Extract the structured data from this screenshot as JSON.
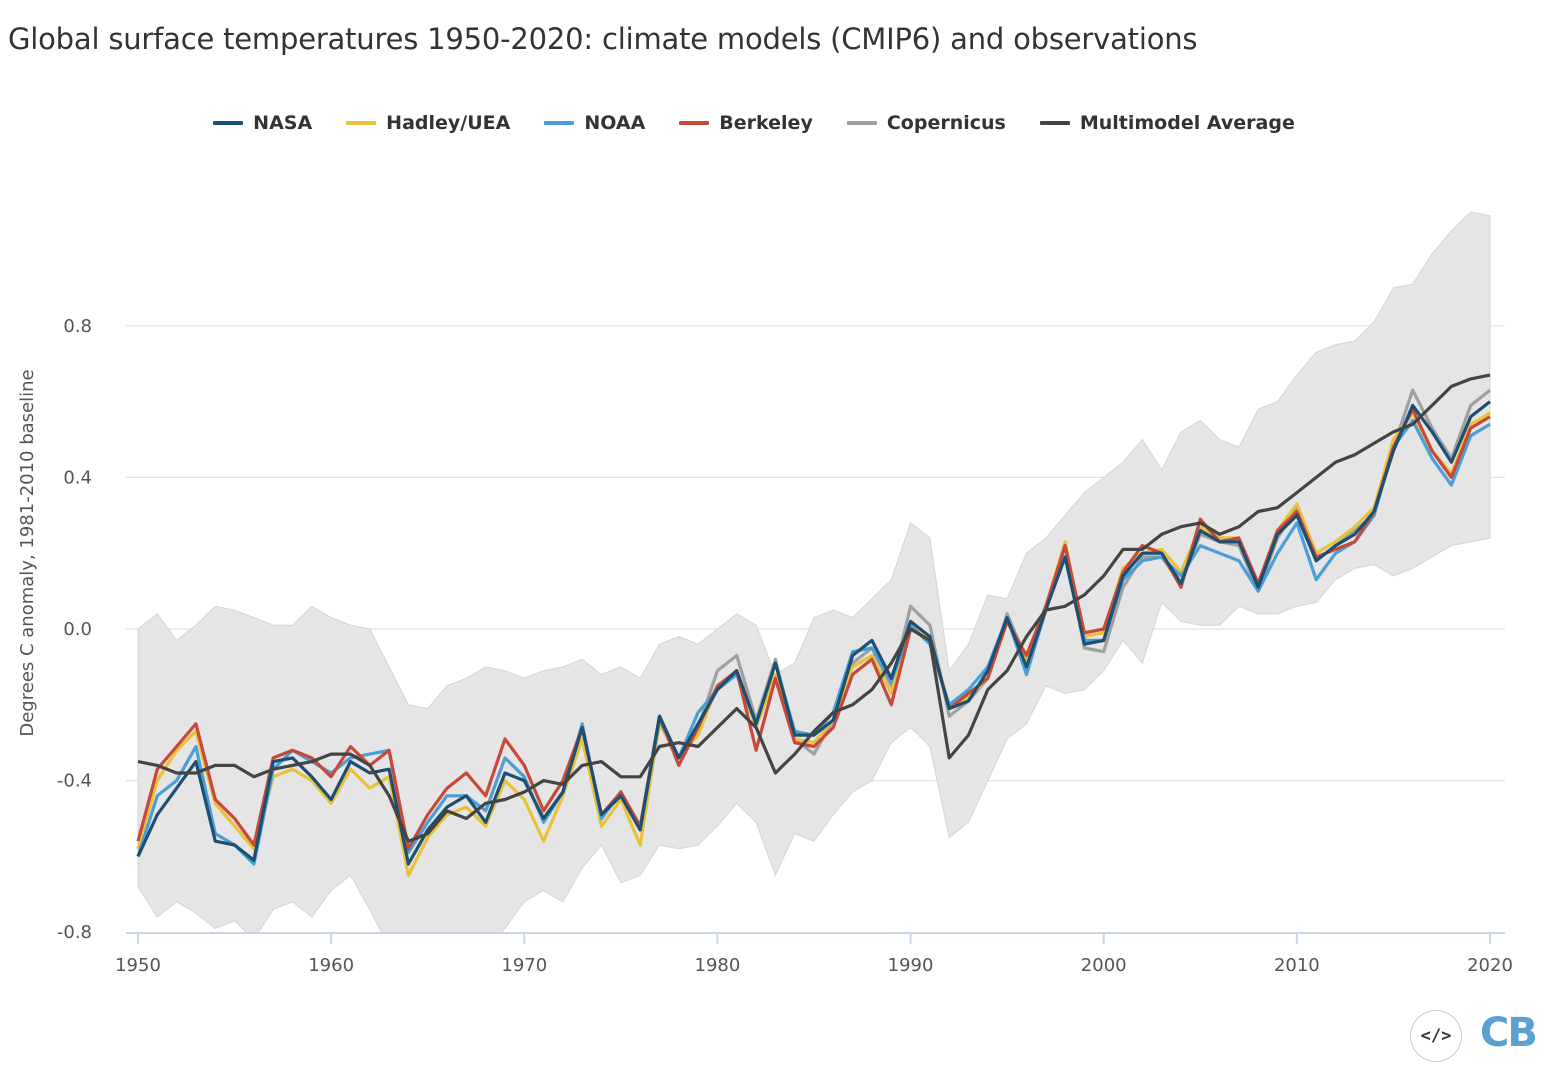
{
  "chart_data": {
    "type": "line",
    "title": "Global surface temperatures 1950-2020: climate models (CMIP6) and observations",
    "ylabel": "Degrees C anomaly, 1981-2010 baseline",
    "xlabel": "",
    "xlim": [
      1950,
      2020
    ],
    "ylim": [
      -0.8,
      1.1
    ],
    "x_ticks": [
      1950,
      1960,
      1970,
      1980,
      1990,
      2000,
      2010,
      2020
    ],
    "x_tick_labels": [
      "1950",
      "1960",
      "1970",
      "1980",
      "1990",
      "2000",
      "2010",
      "2020"
    ],
    "y_ticks": [
      -0.8,
      -0.4,
      0.0,
      0.4,
      0.8
    ],
    "y_tick_labels": [
      "-0.8",
      "-0.4",
      "0.0",
      "0.4",
      "0.8"
    ],
    "grid": "horizontal",
    "legend_placement": "top",
    "start_year": 1950,
    "band": {
      "color": "#e5e5e5",
      "upper": [
        0.0,
        0.04,
        -0.03,
        0.01,
        0.06,
        0.05,
        0.03,
        0.01,
        0.01,
        0.06,
        0.03,
        0.01,
        0.0,
        -0.1,
        -0.2,
        -0.21,
        -0.15,
        -0.13,
        -0.1,
        -0.11,
        -0.13,
        -0.11,
        -0.1,
        -0.08,
        -0.12,
        -0.1,
        -0.13,
        -0.04,
        -0.02,
        -0.04,
        0.0,
        0.04,
        0.01,
        -0.12,
        -0.09,
        0.03,
        0.05,
        0.03,
        0.08,
        0.13,
        0.28,
        0.24,
        -0.11,
        -0.04,
        0.09,
        0.08,
        0.2,
        0.24,
        0.3,
        0.36,
        0.4,
        0.44,
        0.5,
        0.42,
        0.52,
        0.55,
        0.5,
        0.48,
        0.58,
        0.6,
        0.67,
        0.73,
        0.75,
        0.76,
        0.81,
        0.9,
        0.91,
        0.99,
        1.05,
        1.1,
        1.09
      ],
      "lower": [
        -0.68,
        -0.76,
        -0.72,
        -0.75,
        -0.79,
        -0.77,
        -0.82,
        -0.74,
        -0.72,
        -0.76,
        -0.69,
        -0.65,
        -0.74,
        -0.84,
        -0.84,
        -0.82,
        -0.82,
        -0.85,
        -0.84,
        -0.79,
        -0.72,
        -0.69,
        -0.72,
        -0.63,
        -0.57,
        -0.67,
        -0.65,
        -0.57,
        -0.58,
        -0.57,
        -0.52,
        -0.46,
        -0.51,
        -0.65,
        -0.54,
        -0.56,
        -0.49,
        -0.43,
        -0.4,
        -0.3,
        -0.26,
        -0.31,
        -0.55,
        -0.51,
        -0.4,
        -0.29,
        -0.25,
        -0.15,
        -0.17,
        -0.16,
        -0.11,
        -0.03,
        -0.09,
        0.07,
        0.02,
        0.01,
        0.01,
        0.06,
        0.04,
        0.04,
        0.06,
        0.07,
        0.13,
        0.16,
        0.17,
        0.14,
        0.16,
        0.19,
        0.22,
        0.23,
        0.24
      ]
    },
    "series": [
      {
        "name": "NASA",
        "color": "#1d4f73",
        "start_year": 1950,
        "values": [
          -0.6,
          -0.49,
          -0.42,
          -0.35,
          -0.56,
          -0.57,
          -0.61,
          -0.35,
          -0.34,
          -0.39,
          -0.45,
          -0.35,
          -0.38,
          -0.37,
          -0.62,
          -0.53,
          -0.47,
          -0.44,
          -0.51,
          -0.38,
          -0.4,
          -0.5,
          -0.43,
          -0.26,
          -0.49,
          -0.44,
          -0.53,
          -0.23,
          -0.34,
          -0.25,
          -0.16,
          -0.11,
          -0.25,
          -0.09,
          -0.28,
          -0.28,
          -0.24,
          -0.07,
          -0.03,
          -0.13,
          0.02,
          -0.02,
          -0.21,
          -0.19,
          -0.11,
          0.03,
          -0.1,
          0.05,
          0.19,
          -0.04,
          -0.03,
          0.14,
          0.2,
          0.2,
          0.12,
          0.26,
          0.23,
          0.23,
          0.11,
          0.25,
          0.3,
          0.18,
          0.22,
          0.25,
          0.31,
          0.47,
          0.59,
          0.52,
          0.44,
          0.56,
          0.6
        ]
      },
      {
        "name": "Hadley/UEA",
        "color": "#e8c23a",
        "start_year": 1950,
        "values": [
          -0.58,
          -0.4,
          -0.32,
          -0.27,
          -0.46,
          -0.52,
          -0.58,
          -0.39,
          -0.37,
          -0.4,
          -0.46,
          -0.37,
          -0.42,
          -0.39,
          -0.65,
          -0.55,
          -0.49,
          -0.47,
          -0.52,
          -0.4,
          -0.45,
          -0.56,
          -0.44,
          -0.29,
          -0.52,
          -0.45,
          -0.57,
          -0.25,
          -0.34,
          -0.28,
          -0.15,
          -0.12,
          -0.26,
          -0.12,
          -0.29,
          -0.3,
          -0.24,
          -0.1,
          -0.07,
          -0.17,
          0.01,
          -0.02,
          -0.21,
          -0.18,
          -0.13,
          0.02,
          -0.08,
          0.06,
          0.23,
          -0.02,
          -0.01,
          0.16,
          0.2,
          0.21,
          0.15,
          0.27,
          0.24,
          0.24,
          0.12,
          0.26,
          0.33,
          0.2,
          0.23,
          0.27,
          0.32,
          0.5,
          0.57,
          0.47,
          0.41,
          0.54,
          0.57
        ]
      },
      {
        "name": "NOAA",
        "color": "#4a9fd6",
        "start_year": 1950,
        "values": [
          -0.6,
          -0.44,
          -0.4,
          -0.31,
          -0.54,
          -0.57,
          -0.62,
          -0.37,
          -0.32,
          -0.35,
          -0.38,
          -0.34,
          -0.33,
          -0.32,
          -0.59,
          -0.51,
          -0.44,
          -0.44,
          -0.48,
          -0.34,
          -0.39,
          -0.51,
          -0.43,
          -0.25,
          -0.5,
          -0.43,
          -0.53,
          -0.24,
          -0.34,
          -0.22,
          -0.16,
          -0.12,
          -0.25,
          -0.09,
          -0.27,
          -0.28,
          -0.22,
          -0.06,
          -0.05,
          -0.14,
          0.01,
          -0.04,
          -0.2,
          -0.16,
          -0.1,
          0.03,
          -0.12,
          0.05,
          0.22,
          -0.03,
          -0.03,
          0.13,
          0.18,
          0.19,
          0.14,
          0.22,
          0.2,
          0.18,
          0.1,
          0.2,
          0.28,
          0.13,
          0.2,
          0.23,
          0.3,
          0.48,
          0.55,
          0.45,
          0.38,
          0.51,
          0.54
        ]
      },
      {
        "name": "Berkeley",
        "color": "#c8493a",
        "start_year": 1950,
        "values": [
          -0.56,
          -0.37,
          -0.31,
          -0.25,
          -0.45,
          -0.5,
          -0.57,
          -0.34,
          -0.32,
          -0.34,
          -0.39,
          -0.31,
          -0.36,
          -0.32,
          -0.58,
          -0.49,
          -0.42,
          -0.38,
          -0.44,
          -0.29,
          -0.36,
          -0.48,
          -0.4,
          -0.26,
          -0.49,
          -0.43,
          -0.52,
          -0.23,
          -0.36,
          -0.26,
          -0.15,
          -0.11,
          -0.32,
          -0.13,
          -0.3,
          -0.31,
          -0.26,
          -0.12,
          -0.08,
          -0.2,
          0.0,
          -0.03,
          -0.21,
          -0.17,
          -0.13,
          0.02,
          -0.07,
          0.06,
          0.22,
          -0.01,
          0.0,
          0.15,
          0.22,
          0.2,
          0.11,
          0.29,
          0.23,
          0.24,
          0.12,
          0.26,
          0.31,
          0.19,
          0.21,
          0.23,
          0.31,
          0.48,
          0.58,
          0.47,
          0.4,
          0.53,
          0.56
        ]
      },
      {
        "name": "Copernicus",
        "color": "#a0a0a0",
        "start_year": 1979,
        "values": [
          -0.26,
          -0.11,
          -0.07,
          -0.24,
          -0.08,
          -0.29,
          -0.33,
          -0.24,
          -0.09,
          -0.05,
          -0.15,
          0.06,
          0.01,
          -0.23,
          -0.19,
          -0.13,
          0.04,
          -0.08,
          0.05,
          0.22,
          -0.05,
          -0.06,
          0.11,
          0.19,
          0.19,
          0.12,
          0.25,
          0.23,
          0.22,
          0.1,
          0.24,
          0.32,
          0.18,
          0.22,
          0.26,
          0.3,
          0.48,
          0.63,
          0.53,
          0.45,
          0.59,
          0.63
        ]
      },
      {
        "name": "Multimodel Average",
        "color": "#444444",
        "start_year": 1950,
        "values": [
          -0.35,
          -0.36,
          -0.38,
          -0.38,
          -0.36,
          -0.36,
          -0.39,
          -0.37,
          -0.36,
          -0.35,
          -0.33,
          -0.33,
          -0.36,
          -0.44,
          -0.56,
          -0.54,
          -0.48,
          -0.5,
          -0.46,
          -0.45,
          -0.43,
          -0.4,
          -0.41,
          -0.36,
          -0.35,
          -0.39,
          -0.39,
          -0.31,
          -0.3,
          -0.31,
          -0.26,
          -0.21,
          -0.26,
          -0.38,
          -0.33,
          -0.27,
          -0.22,
          -0.2,
          -0.16,
          -0.09,
          0.0,
          -0.03,
          -0.34,
          -0.28,
          -0.16,
          -0.11,
          -0.02,
          0.05,
          0.06,
          0.09,
          0.14,
          0.21,
          0.21,
          0.25,
          0.27,
          0.28,
          0.25,
          0.27,
          0.31,
          0.32,
          0.36,
          0.4,
          0.44,
          0.46,
          0.49,
          0.52,
          0.54,
          0.59,
          0.64,
          0.66,
          0.67
        ]
      }
    ]
  },
  "logo": {
    "code_glyph": "</>",
    "text": "CB",
    "color": "#5aa0d0"
  }
}
